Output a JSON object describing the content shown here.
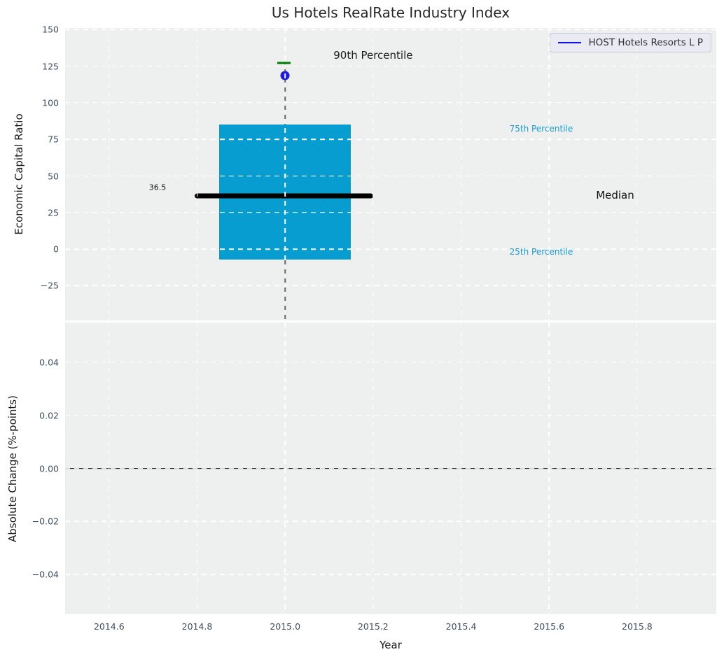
{
  "figure": {
    "background": "#ffffff",
    "plot_background": "#edf0ef",
    "grid_color": "#ffffff",
    "tick_color": "#3d4c63"
  },
  "legend": {
    "label": "HOST Hotels Resorts L P",
    "line_color": "#1010e8",
    "position": "upper right"
  },
  "chart_data": [
    {
      "type": "box",
      "title": "Us Hotels RealRate Industry Index",
      "ylabel": "Economic Capital Ratio",
      "xlim": [
        2014.5,
        2015.98
      ],
      "ylim": [
        -48.7,
        151.1
      ],
      "grid": true,
      "legend_position": "upper right",
      "yticks": [
        {
          "v": 150,
          "label": "150"
        },
        {
          "v": 125,
          "label": "125"
        },
        {
          "v": 100,
          "label": "100"
        },
        {
          "v": 75,
          "label": "75"
        },
        {
          "v": 50,
          "label": "50"
        },
        {
          "v": 25,
          "label": "25"
        },
        {
          "v": 0,
          "label": "0"
        },
        {
          "v": -25,
          "label": "−25"
        }
      ],
      "box": {
        "x_center": 2015.0,
        "box_left": 2014.85,
        "box_right": 2015.15,
        "median_left": 2014.795,
        "median_right": 2015.2,
        "cap_left": 2014.982,
        "cap_right": 2015.012,
        "q25": -7,
        "median": 36.5,
        "q75": 85,
        "p90": 127,
        "whisker_low": "clipped below axis",
        "box_color": "#089dd1",
        "median_color": "#000000",
        "cap_color": "#008000",
        "whisker_color": "#666666"
      },
      "company_point": {
        "name": "HOST Hotels Resorts L P",
        "x": 2015.0,
        "y": 118.5,
        "color": "#1c1ce0"
      },
      "annotations": [
        {
          "id": "p90-label",
          "text": "90th Percentile",
          "x": 2015.2,
          "y": 132.5,
          "color": "#1a1a1a",
          "size": 15,
          "anchor": "center"
        },
        {
          "id": "p75-label",
          "text": "75th Percentile",
          "x": 2015.51,
          "y": 82.5,
          "color": "#1a9bd2",
          "size": 12,
          "anchor": "left"
        },
        {
          "id": "median-label",
          "text": "Median",
          "x": 2015.75,
          "y": 37,
          "color": "#111111",
          "size": 15,
          "anchor": "center"
        },
        {
          "id": "p25-label",
          "text": "25th Percentile",
          "x": 2015.51,
          "y": -2,
          "color": "#1a9bd2",
          "size": 12,
          "anchor": "left"
        },
        {
          "id": "median-value",
          "text": "36.5",
          "x": 2014.71,
          "y": 42,
          "color": "#111111",
          "size": 11,
          "anchor": "center"
        }
      ]
    },
    {
      "type": "line",
      "ylabel": "Absolute Change (%-points)",
      "xlabel": "Year",
      "xlim": [
        2014.5,
        2015.98
      ],
      "ylim": [
        -0.055,
        0.055
      ],
      "grid": true,
      "zero_line": 0.0,
      "yticks": [
        {
          "v": 0.04,
          "label": "0.04"
        },
        {
          "v": 0.02,
          "label": "0.02"
        },
        {
          "v": 0,
          "label": "0.00"
        },
        {
          "v": -0.02,
          "label": "−0.02"
        },
        {
          "v": -0.04,
          "label": "−0.04"
        }
      ],
      "xticks": [
        {
          "v": 2014.6,
          "label": "2014.6"
        },
        {
          "v": 2014.8,
          "label": "2014.8"
        },
        {
          "v": 2015.0,
          "label": "2015.0"
        },
        {
          "v": 2015.2,
          "label": "2015.2"
        },
        {
          "v": 2015.4,
          "label": "2015.4"
        },
        {
          "v": 2015.6,
          "label": "2015.6"
        },
        {
          "v": 2015.8,
          "label": "2015.8"
        }
      ]
    }
  ]
}
